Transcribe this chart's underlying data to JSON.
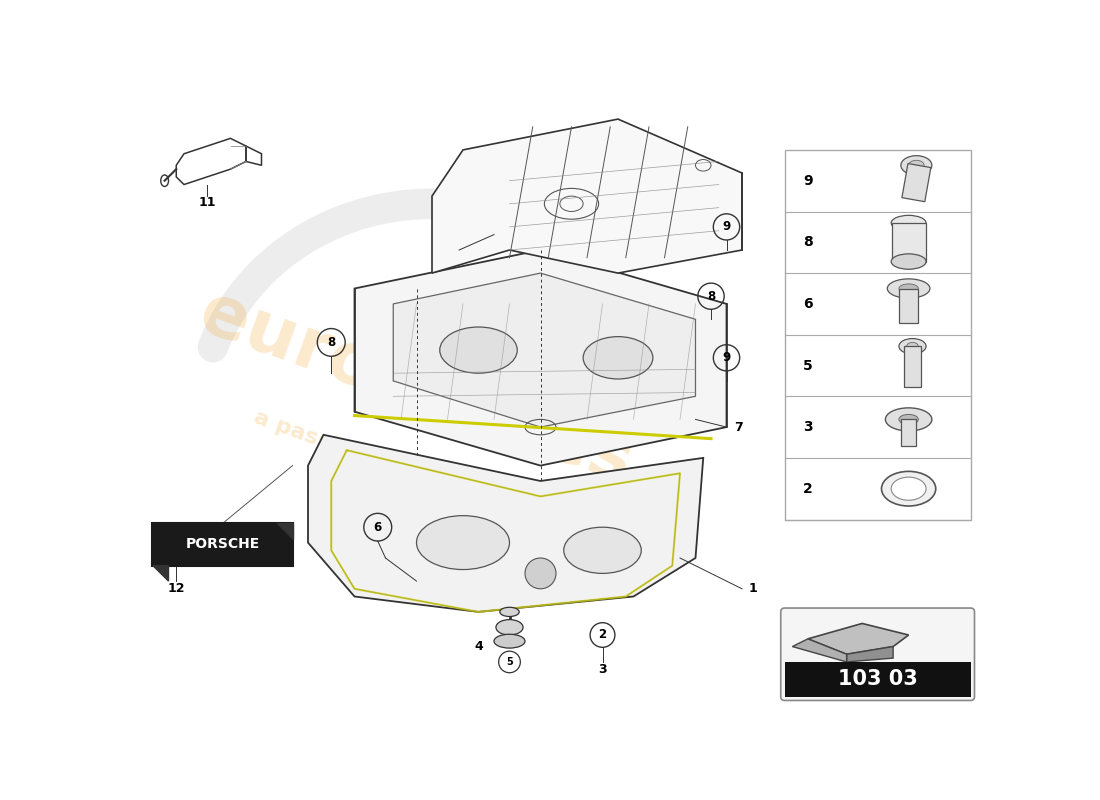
{
  "bg_color": "#ffffff",
  "part_number": "103 03",
  "porsche_label": "PORSCHE",
  "watermark_color": "#f0a020",
  "line_color": "#333333",
  "sidebar_parts": [
    "9",
    "8",
    "6",
    "5",
    "3",
    "2"
  ]
}
